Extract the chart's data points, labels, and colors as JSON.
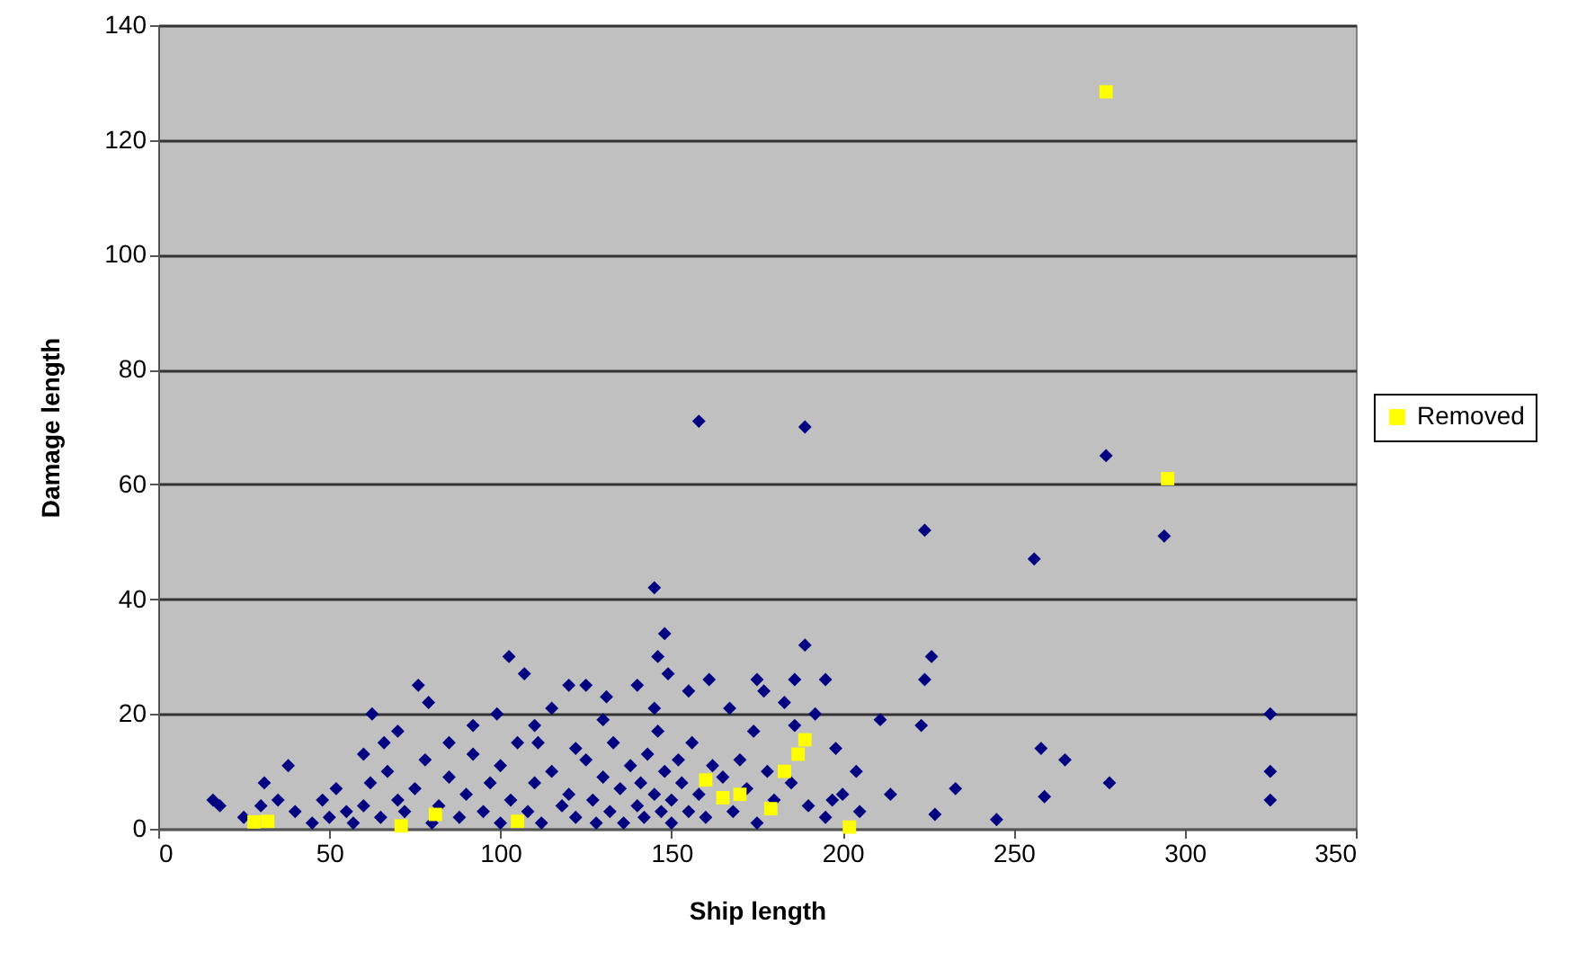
{
  "chart_data": {
    "type": "scatter",
    "xlabel": "Ship length",
    "ylabel": "Damage length",
    "xlim": [
      0,
      350
    ],
    "xticks": [
      0,
      50,
      100,
      150,
      200,
      250,
      300,
      350
    ],
    "ylim": [
      0,
      140
    ],
    "yticks": [
      0,
      20,
      40,
      60,
      80,
      100,
      120,
      140
    ],
    "grid": "y",
    "legend": "right",
    "series": [
      {
        "color": "#000080",
        "marker": "diamond",
        "x": [
          158,
          189,
          224,
          277,
          256,
          294,
          145,
          148,
          189,
          226,
          224,
          223,
          325,
          325,
          325,
          258,
          265,
          259,
          278,
          245,
          233,
          227,
          214,
          211,
          198,
          195,
          204,
          197,
          140,
          131,
          125,
          155,
          149,
          146,
          161,
          175,
          177,
          186,
          192,
          167,
          183,
          186,
          174,
          111,
          102.5,
          107,
          76,
          79,
          62.5,
          66,
          120,
          115,
          99,
          92,
          110,
          38,
          16,
          18,
          31,
          122,
          40,
          45,
          48,
          50,
          52,
          55,
          57,
          60,
          62,
          65,
          67,
          70,
          72,
          75,
          78,
          80,
          82,
          85,
          88,
          90,
          92,
          95,
          97,
          100,
          100,
          103,
          105,
          108,
          110,
          112,
          115,
          118,
          120,
          122,
          125,
          127,
          128,
          130,
          132,
          133,
          135,
          136,
          138,
          140,
          141,
          142,
          143,
          145,
          146,
          147,
          148,
          150,
          150,
          152,
          153,
          155,
          156,
          158,
          160,
          162,
          165,
          168,
          170,
          172,
          175,
          178,
          180,
          185,
          190,
          195,
          200,
          205,
          60,
          70,
          85,
          130,
          145,
          35,
          25,
          30
        ],
        "values": [
          71,
          70,
          52,
          65,
          47,
          51,
          42,
          34,
          32,
          30,
          26,
          18,
          20,
          10,
          5,
          14,
          12,
          5.6,
          8,
          1.6,
          7,
          2.5,
          6,
          19,
          14,
          26,
          10,
          5,
          25,
          23,
          25,
          24,
          27,
          30,
          26,
          26,
          24,
          26,
          20,
          21,
          22,
          18,
          17,
          15,
          30,
          27,
          25,
          22,
          20,
          15,
          25,
          21,
          20,
          18,
          18,
          11,
          5,
          4,
          8,
          14,
          3,
          1,
          5,
          2,
          7,
          3,
          1,
          4,
          8,
          2,
          10,
          5,
          3,
          7,
          12,
          1,
          4,
          9,
          2,
          6,
          13,
          3,
          8,
          1,
          11,
          5,
          15,
          3,
          8,
          1,
          10,
          4,
          6,
          2,
          12,
          5,
          1,
          9,
          3,
          15,
          7,
          1,
          11,
          4,
          8,
          2,
          13,
          6,
          17,
          3,
          10,
          5,
          1,
          12,
          8,
          3,
          15,
          6,
          2,
          11,
          9,
          3,
          12,
          7,
          1,
          10,
          5,
          8,
          4,
          2,
          6,
          3,
          13,
          17,
          15,
          19,
          21,
          5,
          2,
          4
        ]
      },
      {
        "name": "Removed",
        "color": "#ffff00",
        "marker": "square",
        "x": [
          277,
          295,
          28,
          32,
          71,
          81,
          105,
          160,
          165,
          170,
          179,
          183,
          187,
          189,
          202
        ],
        "values": [
          128.4,
          61,
          1.2,
          1.3,
          0.5,
          2.5,
          1.3,
          8.5,
          5.4,
          6,
          3.5,
          10,
          13,
          15.5,
          0.3
        ]
      }
    ]
  }
}
